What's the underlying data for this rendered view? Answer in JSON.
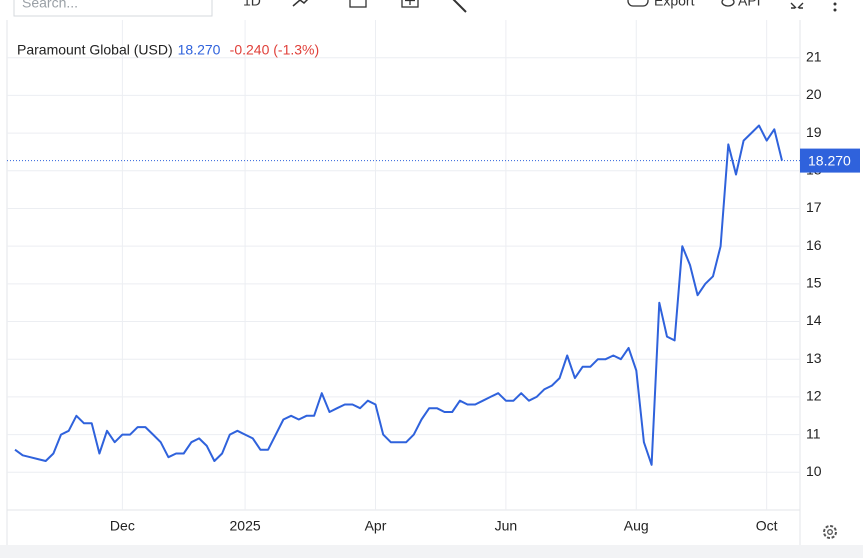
{
  "toolbar": {
    "search_placeholder": "Search...",
    "interval": "1D",
    "export": "Export",
    "api": "API"
  },
  "chart_data": {
    "type": "line",
    "legend": {
      "name": "Paramount Global (USD)",
      "change": "-0.240 (-1.3%)"
    },
    "last_price": {
      "value": 18.27,
      "label": "18.270"
    },
    "categories": [
      null,
      null,
      null,
      null,
      null,
      null,
      null,
      null,
      null,
      null,
      null,
      null,
      null,
      null,
      "Dec",
      null,
      null,
      null,
      null,
      null,
      null,
      null,
      null,
      null,
      null,
      null,
      null,
      null,
      null,
      null,
      "2025",
      null,
      null,
      null,
      null,
      null,
      null,
      null,
      null,
      null,
      null,
      null,
      null,
      null,
      null,
      null,
      null,
      "Apr",
      null,
      null,
      null,
      null,
      null,
      null,
      null,
      null,
      null,
      null,
      null,
      null,
      null,
      null,
      null,
      null,
      "Jun",
      null,
      null,
      null,
      null,
      null,
      null,
      null,
      null,
      null,
      null,
      null,
      null,
      null,
      null,
      null,
      null,
      "Aug",
      null,
      null,
      null,
      null,
      null,
      null,
      null,
      null,
      null,
      null,
      null,
      null,
      null,
      null,
      null,
      null,
      "Oct",
      null,
      null
    ],
    "series": [
      {
        "name": "Paramount Global (USD)",
        "color": "#2f62dc",
        "values": [
          10.6,
          10.45,
          10.4,
          10.35,
          10.3,
          10.5,
          11.0,
          11.1,
          11.5,
          11.3,
          11.3,
          10.5,
          11.1,
          10.8,
          11.0,
          11.0,
          11.2,
          11.2,
          11.0,
          10.8,
          10.4,
          10.5,
          10.5,
          10.8,
          10.9,
          10.7,
          10.3,
          10.5,
          11.0,
          11.1,
          11.0,
          10.9,
          10.6,
          10.6,
          11.0,
          11.4,
          11.5,
          11.4,
          11.5,
          11.5,
          12.1,
          11.6,
          11.7,
          11.8,
          11.8,
          11.7,
          11.9,
          11.8,
          11.0,
          10.8,
          10.8,
          10.8,
          11.0,
          11.4,
          11.7,
          11.7,
          11.6,
          11.6,
          11.9,
          11.8,
          11.8,
          11.9,
          12.0,
          12.1,
          11.9,
          11.9,
          12.1,
          11.9,
          12.0,
          12.2,
          12.3,
          12.5,
          13.1,
          12.5,
          12.8,
          12.8,
          13.0,
          13.0,
          13.1,
          13.0,
          13.3,
          12.7,
          10.8,
          10.2,
          14.5,
          13.6,
          13.5,
          16.0,
          15.5,
          14.7,
          15.0,
          15.2,
          16.0,
          18.7,
          17.9,
          18.8,
          19.0,
          19.2,
          18.8,
          19.1,
          18.27
        ]
      }
    ],
    "ylim": [
      9,
      22
    ],
    "yticks": [
      10,
      11,
      12,
      13,
      14,
      15,
      16,
      17,
      18,
      19,
      20,
      21
    ],
    "grid": true
  }
}
